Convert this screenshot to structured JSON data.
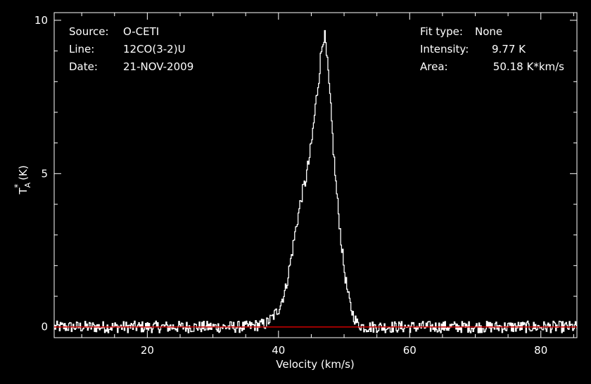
{
  "chart_data": {
    "type": "line",
    "xlabel": "Velocity (km/s)",
    "ylabel": "T*A (K)",
    "ylabel_parts": {
      "main": "T",
      "sup": "*",
      "sub": "A",
      "unit": "(K)"
    },
    "xlim": [
      5.8,
      85.5
    ],
    "ylim": [
      -0.35,
      10.25
    ],
    "x_ticks": [
      20,
      40,
      60,
      80
    ],
    "y_ticks": [
      0,
      5,
      10
    ],
    "x_tick_labels": [
      "20",
      "40",
      "60",
      "80"
    ],
    "y_tick_labels": [
      "0",
      "5",
      "10"
    ],
    "grid": false,
    "baseline": {
      "value": 0,
      "color": "#cc0000"
    },
    "line_color": "#ffffff",
    "background": "#000000",
    "info_left": [
      {
        "key": "Source:",
        "value": "O-CETI"
      },
      {
        "key": "Line:",
        "value": "12CO(3-2)U"
      },
      {
        "key": "Date:",
        "value": "21-NOV-2009"
      }
    ],
    "info_right": [
      {
        "key": "Fit type:",
        "value": "None"
      },
      {
        "key": "Intensity:",
        "value": "9.77 K"
      },
      {
        "key": "Area:",
        "value": "50.18 K*km/s"
      }
    ],
    "series": [
      {
        "x": [
          6,
          10,
          15,
          20,
          25,
          30,
          35,
          38,
          39,
          40,
          41,
          42,
          42.5,
          43,
          43.5,
          44,
          44.5,
          45,
          45.5,
          46,
          46.5,
          46.8,
          47,
          47.5,
          48,
          48.5,
          49,
          49.5,
          50,
          50.5,
          51,
          51.5,
          52,
          53,
          55,
          60,
          65,
          70,
          75,
          80,
          85
        ],
        "y": [
          0,
          0,
          0,
          0,
          0,
          0,
          0,
          0.1,
          0.3,
          0.6,
          1.2,
          2.4,
          3.1,
          3.7,
          4.3,
          4.7,
          5.3,
          6.0,
          7.0,
          8.0,
          9.0,
          9.6,
          9.4,
          8.3,
          6.8,
          5.2,
          3.9,
          2.8,
          1.8,
          1.1,
          0.6,
          0.3,
          0.1,
          0,
          0,
          0,
          0,
          0,
          0,
          0,
          0
        ],
        "noise_rms": 0.12
      }
    ]
  }
}
